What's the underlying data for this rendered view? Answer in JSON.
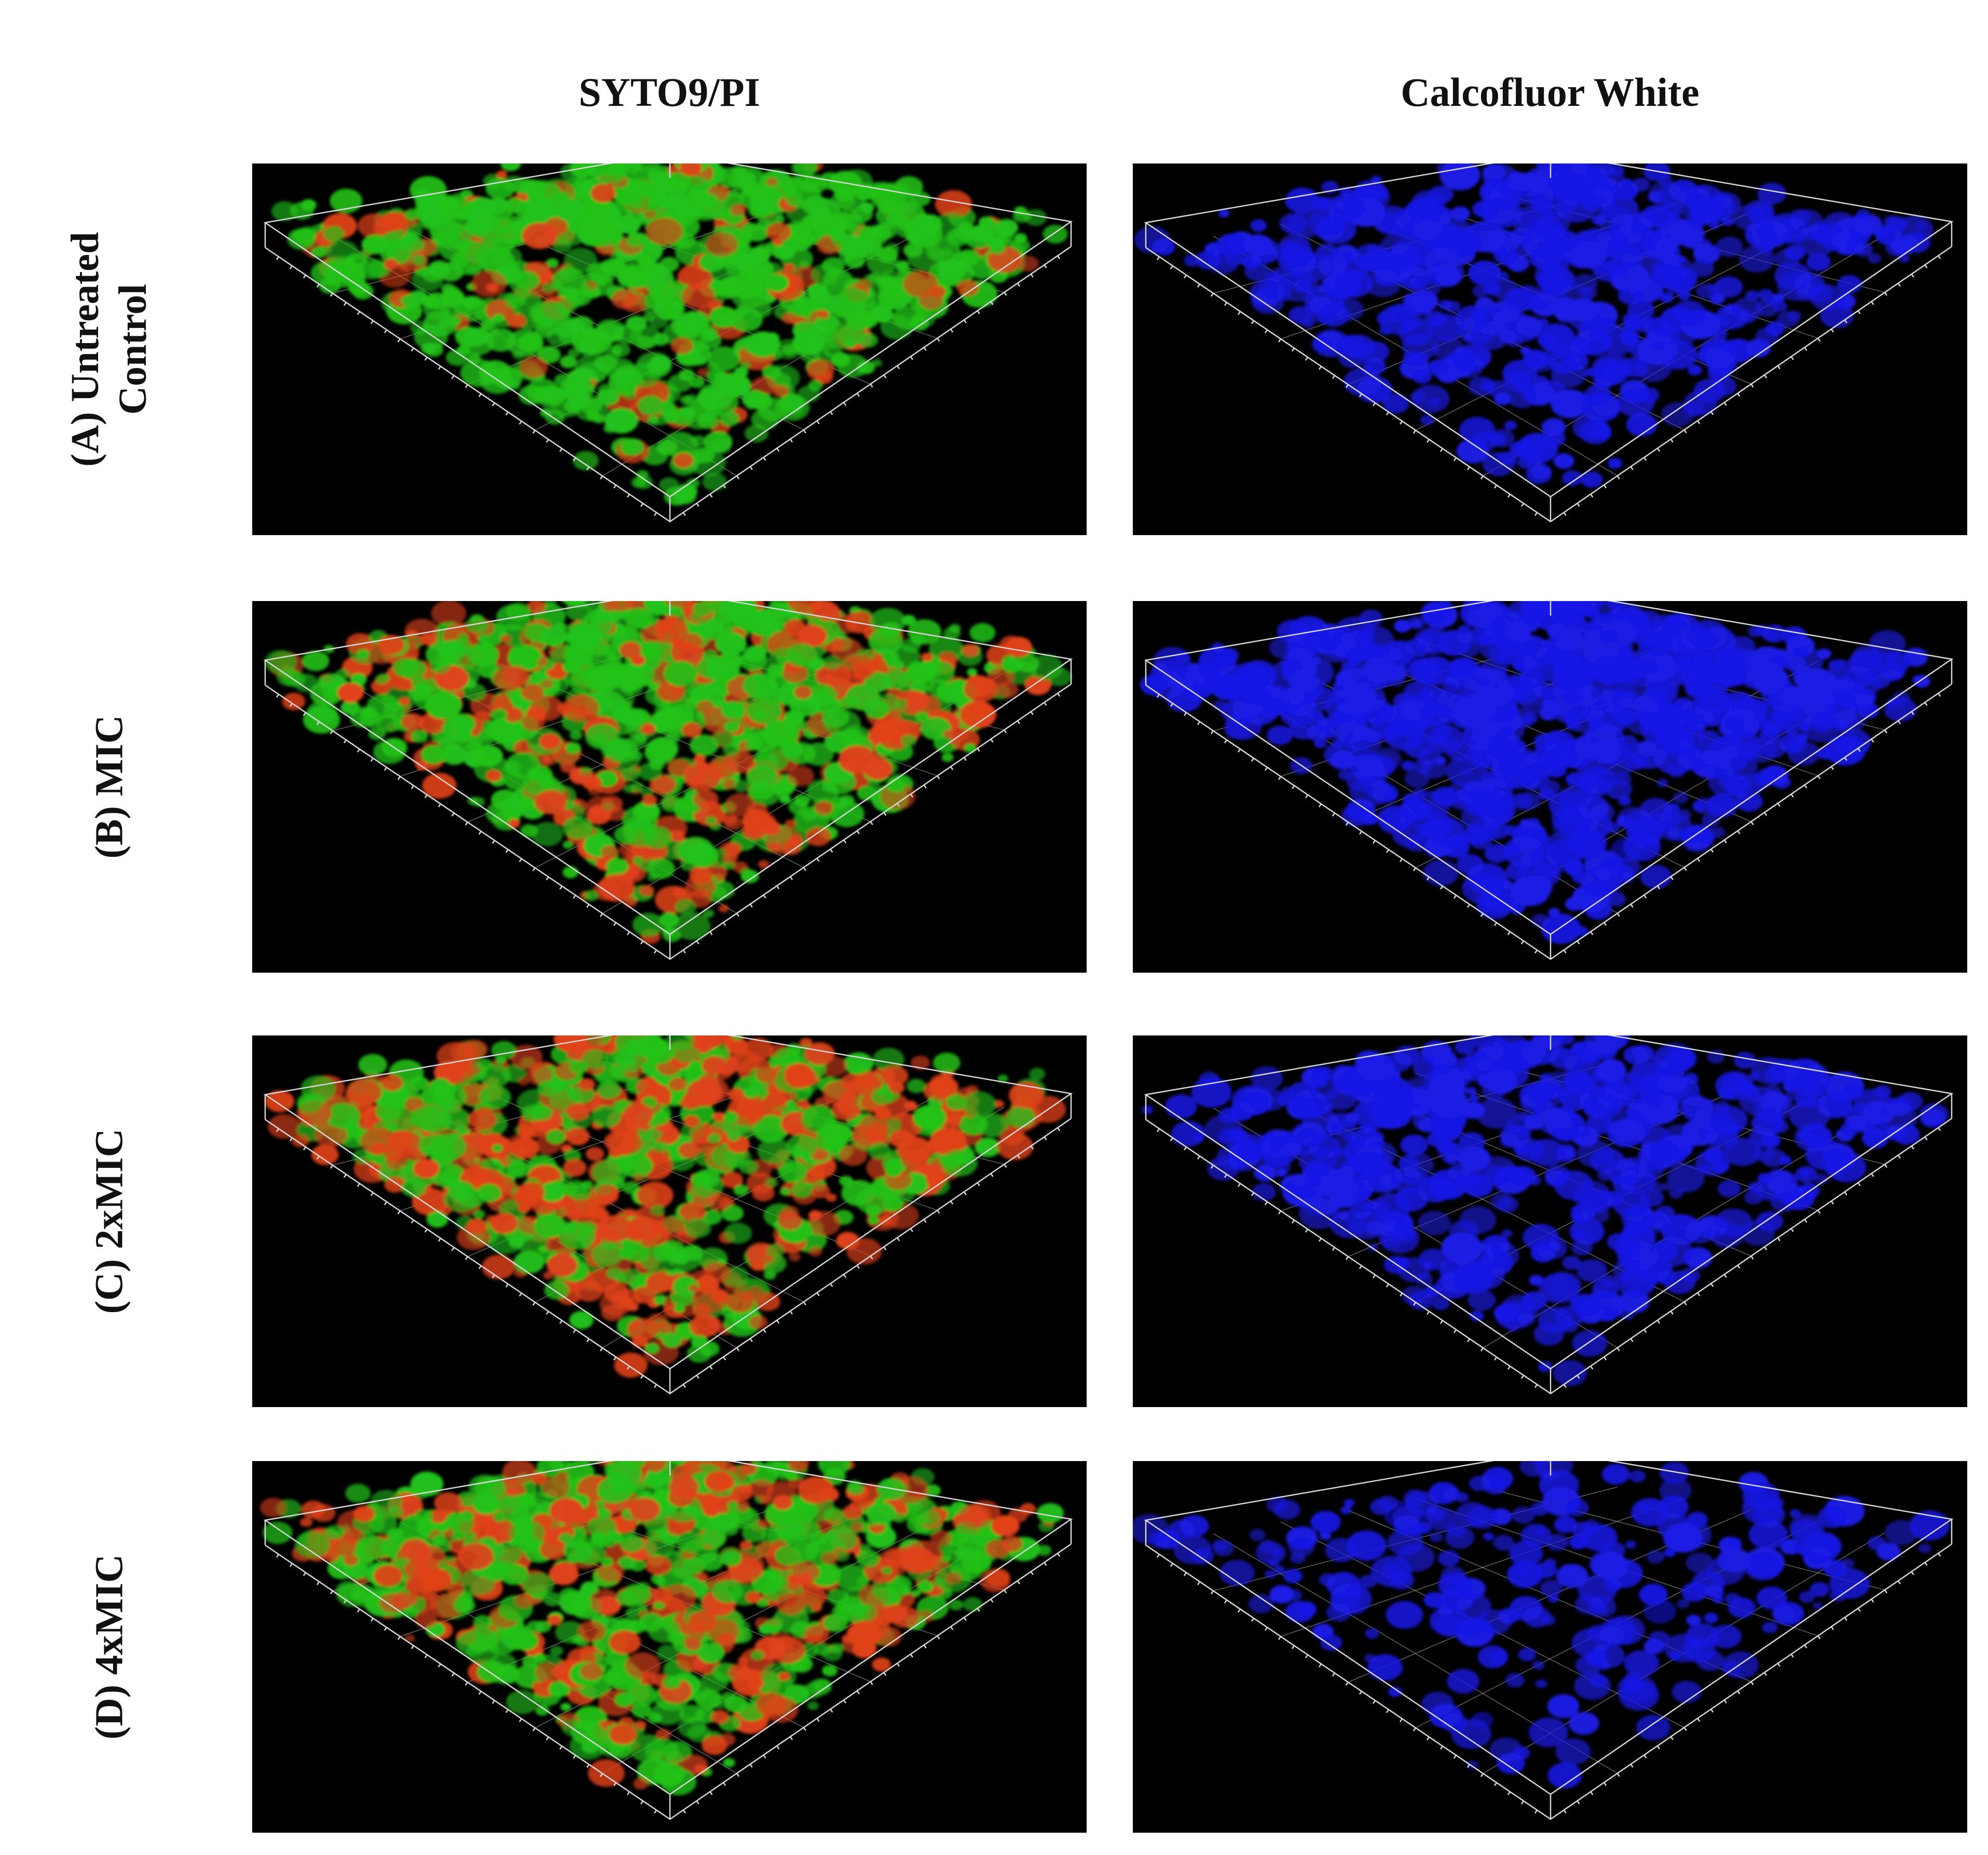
{
  "columns": [
    {
      "title": "SYTO9/PI",
      "stain": "syto-pi"
    },
    {
      "title": "Calcofluor White",
      "stain": "calcofluor"
    }
  ],
  "rows": [
    {
      "label_lines": [
        "(A) Untreated",
        "Control"
      ],
      "green_fraction": 0.85,
      "blue_density": 0.55
    },
    {
      "label_lines": [
        "(B) MIC"
      ],
      "green_fraction": 0.65,
      "blue_density": 0.8
    },
    {
      "label_lines": [
        "(C) 2xMIC"
      ],
      "green_fraction": 0.45,
      "blue_density": 0.55
    },
    {
      "label_lines": [
        "(D) 4xMIC"
      ],
      "green_fraction": 0.6,
      "blue_density": 0.25
    }
  ],
  "colors": {
    "background": "#000000",
    "live_stain": "#22c21a",
    "dead_stain": "#e0421a",
    "calcofluor": "#1a1ae6",
    "box_lines": "#d8d8d8"
  }
}
